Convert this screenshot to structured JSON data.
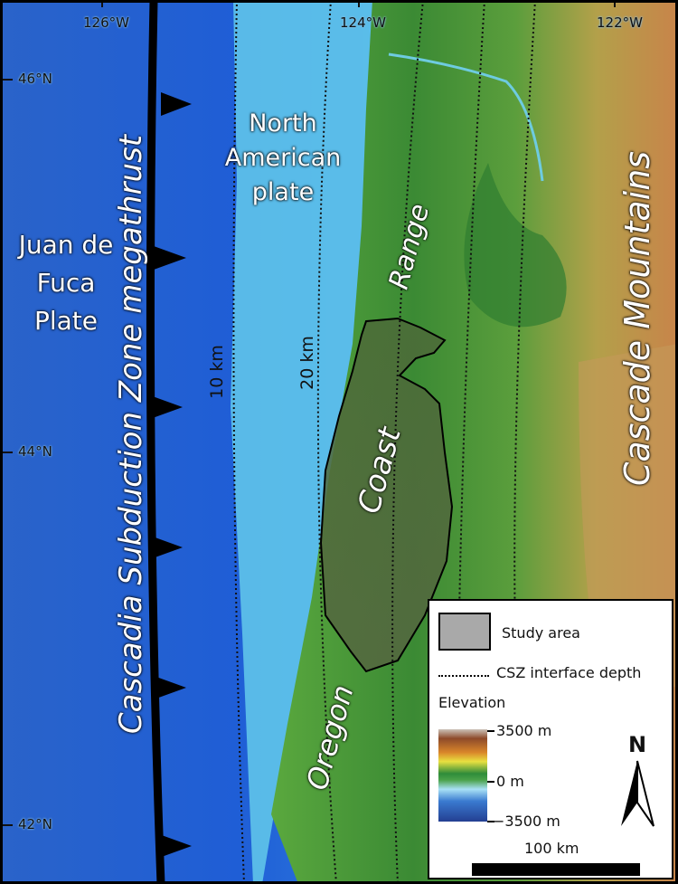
{
  "graticule": {
    "lon_labels": [
      "126°W",
      "124°W",
      "122°W"
    ],
    "lat_labels": [
      "46°N",
      "44°N",
      "42°N"
    ]
  },
  "labels": {
    "juan_de_fuca": [
      "Juan de",
      "Fuca",
      "Plate"
    ],
    "north_american": [
      "North",
      "American",
      "plate"
    ],
    "megathrust": "Cascadia Subduction Zone megathrust",
    "cascade": "Cascade Mountains",
    "coast": "Coast",
    "range": "Range",
    "oregon": "Oregon",
    "depth_10": "10 km",
    "depth_20": "20 km"
  },
  "legend": {
    "study_area": "Study area",
    "csz_depth": "CSZ interface depth",
    "elevation_title": "Elevation",
    "elevation_max": "3500 m",
    "elevation_zero": "0 m",
    "elevation_min": "−3500 m",
    "north": "N",
    "scale": "100 km"
  },
  "colors": {
    "deep_ocean": "#1f5fd0",
    "shelf": "#5fc4ea",
    "lowland": "#3f8f33",
    "study_area_fill": "#4a5a36",
    "highland": "#c98a4a"
  }
}
